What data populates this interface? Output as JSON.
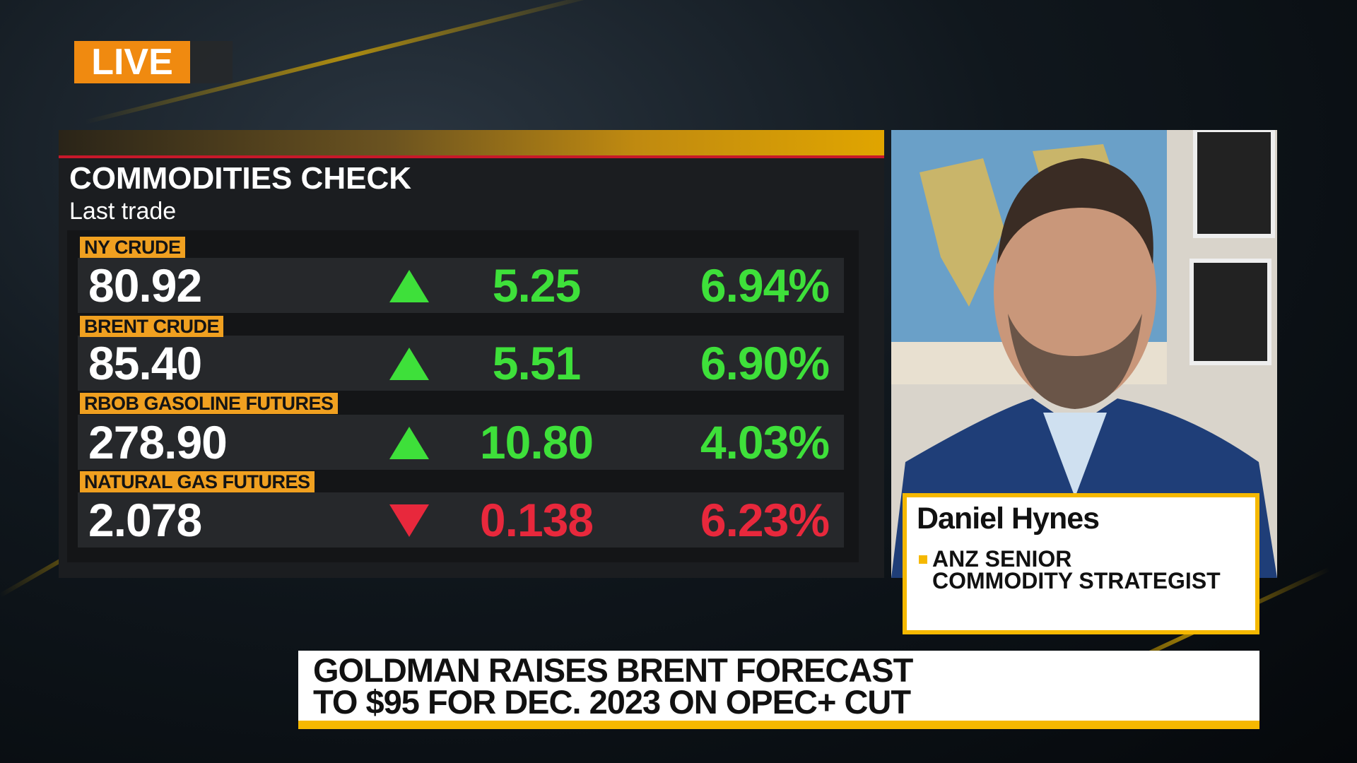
{
  "live": "LIVE",
  "panel": {
    "title": "COMMODITIES CHECK",
    "subtitle": "Last trade",
    "rows": [
      {
        "name": "NY CRUDE",
        "last": "80.92",
        "direction": "up",
        "change": "5.25",
        "pct": "6.94%"
      },
      {
        "name": "BRENT CRUDE",
        "last": "85.40",
        "direction": "up",
        "change": "5.51",
        "pct": "6.90%"
      },
      {
        "name": "RBOB GASOLINE FUTURES",
        "last": "278.90",
        "direction": "up",
        "change": "10.80",
        "pct": "4.03%"
      },
      {
        "name": "NATURAL GAS FUTURES",
        "last": "2.078",
        "direction": "down",
        "change": "0.138",
        "pct": "6.23%"
      }
    ]
  },
  "guest": {
    "name": "Daniel Hynes",
    "title_lines": [
      "ANZ SENIOR",
      "COMMODITY STRATEGIST"
    ]
  },
  "headline": {
    "lines": [
      "GOLDMAN RAISES BRENT FORECAST",
      "TO $95 FOR DEC. 2023 ON OPEC+ CUT"
    ]
  }
}
